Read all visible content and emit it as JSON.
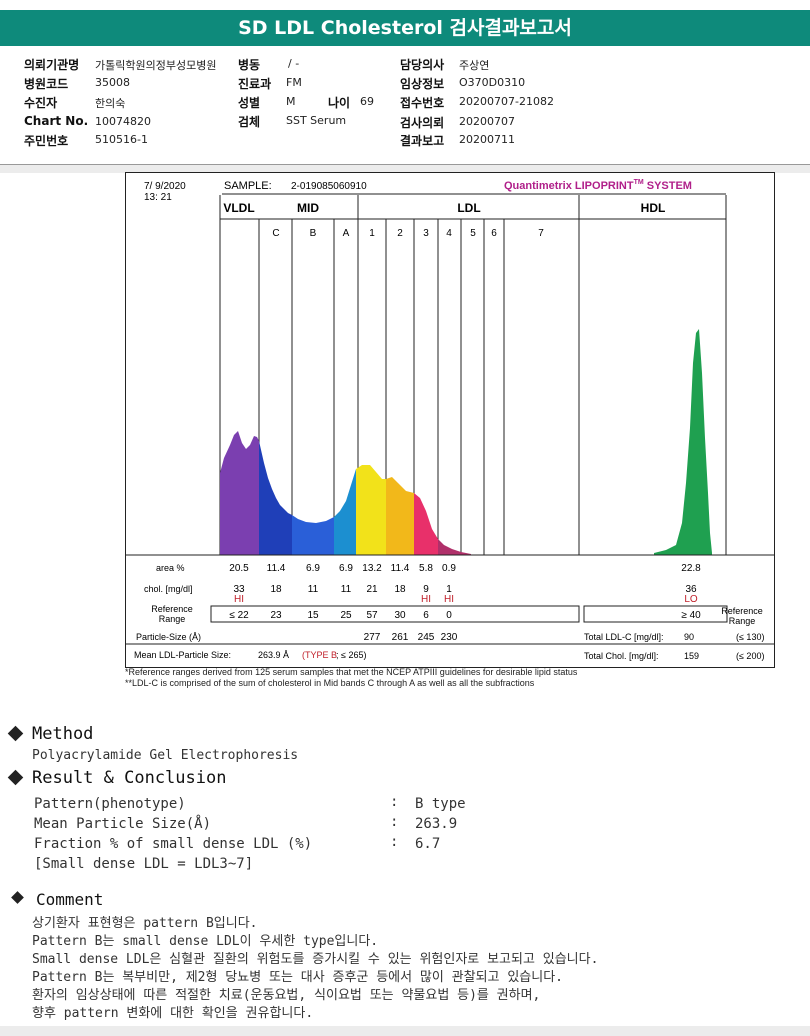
{
  "header": {
    "title": "SD LDL Cholesterol 검사결과보고서"
  },
  "info": {
    "institution_label": "의뢰기관명",
    "institution_value": "가톨릭학원의정부성모병원",
    "ward_label": "병동",
    "ward_value": "/ -",
    "doctor_label": "담당의사",
    "doctor_value": "주상연",
    "hospital_code_label": "병원코드",
    "hospital_code_value": "35008",
    "dept_label": "진료과",
    "dept_value": "FM",
    "clinical_label": "임상정보",
    "clinical_value": "O370D0310",
    "patient_label": "수진자",
    "patient_value": "한의숙",
    "sex_label": "성별",
    "sex_value": "M",
    "age_label": "나이",
    "age_value": "69",
    "receipt_label": "접수번호",
    "receipt_value": "20200707-21082",
    "chart_label": "Chart No.",
    "chart_value": "10074820",
    "specimen_label": "검체",
    "specimen_value": "SST Serum",
    "request_label": "검사의뢰",
    "request_value": "20200707",
    "rrn_label": "주민번호",
    "rrn_value": "510516-1",
    "report_label": "결과보고",
    "report_value": "20200711"
  },
  "report": {
    "date": "7/ 9/2020",
    "time": "13: 21",
    "sample_label": "SAMPLE:",
    "sample_value": "2-019085060910",
    "brand": "Quantimetrix LIPOPRINT",
    "brand_tm": "TM",
    "brand_suffix": " SYSTEM",
    "group_vldl": "VLDL",
    "group_mid": "MID",
    "group_ldl": "LDL",
    "group_hdl": "HDL",
    "bands": [
      "C",
      "B",
      "A",
      "1",
      "2",
      "3",
      "4",
      "5",
      "6",
      "7"
    ],
    "row_area_label": "area %",
    "area_values": [
      "20.5",
      "11.4",
      "6.9",
      "6.9",
      "13.2",
      "11.4",
      "5.8",
      "0.9"
    ],
    "area_hdl": "22.8",
    "row_chol_label": "chol. [mg/dl]",
    "chol_values": [
      "33",
      "18",
      "11",
      "11",
      "21",
      "18",
      "9",
      "1"
    ],
    "chol_flags": [
      "HI",
      "",
      "",
      "",
      "",
      "",
      "HI",
      "HI"
    ],
    "chol_hdl": "36",
    "chol_hdl_flag": "LO",
    "ref_label_1": "Reference",
    "ref_label_2": "Range",
    "ref_values": [
      "≤  22",
      "23",
      "15",
      "25",
      "57",
      "30",
      "6",
      "0"
    ],
    "ref_hdl": "≥ 40",
    "ref_right_1": "Reference",
    "ref_right_2": "Range",
    "particle_label": "Particle-Size (Å)",
    "particle_values": [
      "277",
      "261",
      "245",
      "230"
    ],
    "total_ldl_label": "Total LDL-C [mg/dl]:",
    "total_ldl_value": "90",
    "total_ldl_ref": "(≤ 130)",
    "mean_label": "Mean LDL-Particle Size:",
    "mean_value": "263.9 Å",
    "mean_type": "(TYPE B",
    "mean_ref": "; ≤ 265)",
    "total_chol_label": "Total Chol. [mg/dl]:",
    "total_chol_value": "159",
    "total_chol_ref": "(≤ 200)",
    "colors": {
      "vldl": "#7b3fb0",
      "c": "#1f3fb8",
      "b": "#2a5fd8",
      "a": "#1c8fd0",
      "l1": "#f2e21a",
      "l2": "#f2b81a",
      "l3": "#e8306a",
      "l4": "#b0306a",
      "hdl": "#1fa050",
      "brand": "#b0208a"
    }
  },
  "footnotes": {
    "line1": "*Reference ranges derived from 125 serum samples that met the NCEP ATPIII guidelines for desirable lipid status",
    "line2": "**LDL-C is comprised of the sum of cholesterol in Mid bands C through A as well as all the subfractions"
  },
  "method": {
    "title": "Method",
    "text": "Polyacrylamide Gel Electrophoresis"
  },
  "result": {
    "title": "Result & Conclusion",
    "rows": [
      {
        "label": "Pattern(phenotype)",
        "value": "B type"
      },
      {
        "label": "Mean Particle Size(Å)",
        "value": "263.9"
      },
      {
        "label": "Fraction % of small dense LDL (%)",
        "value": "6.7"
      }
    ],
    "note": "[Small dense LDL = LDL3~7]"
  },
  "comment": {
    "title": "Comment",
    "lines": [
      "상기환자 표현형은 pattern B입니다.",
      "Pattern B는 small dense LDL이 우세한 type입니다.",
      "Small dense LDL은 심혈관 질환의 위험도를 증가시킬 수 있는 위험인자로 보고되고 있습니다.",
      "Pattern B는 복부비만, 제2형 당뇨병 또는 대사 증후군 등에서 많이 관찰되고 있습니다.",
      "환자의 임상상태에 따른 적절한 치료(운동요법, 식이요법 또는 약물요법 등)를 권하며,",
      "향후 pattern 변화에 대한 확인을 권유합니다."
    ]
  }
}
